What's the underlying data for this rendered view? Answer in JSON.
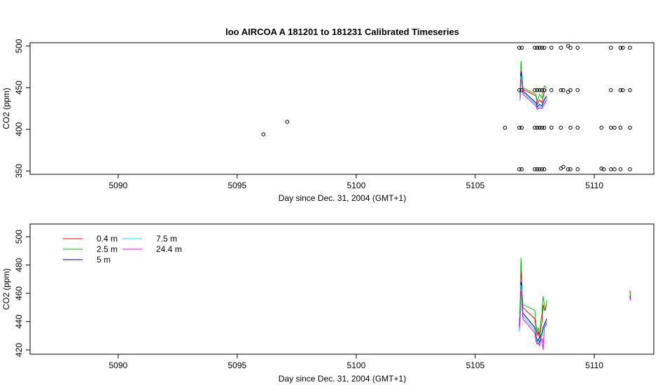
{
  "chart_data": [
    {
      "type": "scatter",
      "title": "loo   AIRCOA  A    181201  to  181231   Calibrated Timeseries",
      "xlabel": "Day since Dec. 31, 2004 (GMT+1)",
      "ylabel": "CO2 (ppm)",
      "xlim": [
        5086.3,
        5112.5
      ],
      "ylim": [
        346,
        504
      ],
      "xticks": [
        "5090",
        "5095",
        "5100",
        "5105",
        "5110"
      ],
      "yticks": [
        "350",
        "400",
        "450",
        "500"
      ],
      "grid": false,
      "colors": {
        "0.4 m": "#ff0000",
        "2.5 m": "#00c000",
        "5 m": "#00008b",
        "7.5 m": "#00e5ee",
        "24.4 m": "#ff00ff"
      },
      "points": [
        [
          5096.1,
          394
        ],
        [
          5097.1,
          409
        ],
        [
          5106.25,
          402
        ],
        [
          5106.85,
          352
        ],
        [
          5106.85,
          402
        ],
        [
          5106.85,
          447
        ],
        [
          5106.85,
          498
        ],
        [
          5106.95,
          352
        ],
        [
          5106.95,
          402
        ],
        [
          5106.95,
          447
        ],
        [
          5106.95,
          498
        ],
        [
          5107.5,
          352
        ],
        [
          5107.5,
          402
        ],
        [
          5107.5,
          447
        ],
        [
          5107.5,
          498
        ],
        [
          5107.6,
          352
        ],
        [
          5107.6,
          402
        ],
        [
          5107.6,
          447
        ],
        [
          5107.6,
          498
        ],
        [
          5107.7,
          352
        ],
        [
          5107.7,
          402
        ],
        [
          5107.7,
          447
        ],
        [
          5107.7,
          498
        ],
        [
          5107.8,
          352
        ],
        [
          5107.8,
          402
        ],
        [
          5107.8,
          447
        ],
        [
          5107.8,
          498
        ],
        [
          5107.9,
          352
        ],
        [
          5107.9,
          402
        ],
        [
          5107.9,
          447
        ],
        [
          5107.9,
          498
        ],
        [
          5108.2,
          402
        ],
        [
          5108.2,
          447
        ],
        [
          5108.2,
          498
        ],
        [
          5108.6,
          353
        ],
        [
          5108.6,
          402
        ],
        [
          5108.6,
          447
        ],
        [
          5108.6,
          498
        ],
        [
          5108.7,
          355
        ],
        [
          5108.7,
          447
        ],
        [
          5108.9,
          352
        ],
        [
          5108.9,
          445
        ],
        [
          5108.9,
          500
        ],
        [
          5109.0,
          352
        ],
        [
          5109.0,
          402
        ],
        [
          5109.0,
          447
        ],
        [
          5109.0,
          498
        ],
        [
          5109.3,
          352
        ],
        [
          5109.3,
          402
        ],
        [
          5109.3,
          447
        ],
        [
          5109.3,
          498
        ],
        [
          5110.3,
          353
        ],
        [
          5110.3,
          402
        ],
        [
          5110.4,
          352
        ],
        [
          5110.7,
          352
        ],
        [
          5110.7,
          402
        ],
        [
          5110.7,
          447
        ],
        [
          5110.7,
          498
        ],
        [
          5110.85,
          352
        ],
        [
          5110.85,
          402
        ],
        [
          5111.1,
          352
        ],
        [
          5111.1,
          402
        ],
        [
          5111.1,
          447
        ],
        [
          5111.1,
          498
        ],
        [
          5111.2,
          447
        ],
        [
          5111.2,
          498
        ],
        [
          5111.5,
          352
        ],
        [
          5111.5,
          402
        ],
        [
          5111.5,
          447
        ],
        [
          5111.5,
          498
        ]
      ],
      "series": [
        {
          "name": "0.4 m",
          "x": [
            5106.88,
            5106.9,
            5106.92,
            5106.95,
            5107.0,
            5107.55,
            5107.6,
            5107.7,
            5107.8,
            5107.9,
            5108.0
          ],
          "y": [
            440,
            456,
            470,
            465,
            448,
            440,
            430,
            435,
            432,
            445,
            448
          ]
        },
        {
          "name": "2.5 m",
          "x": [
            5106.88,
            5106.9,
            5106.92,
            5106.95,
            5107.0,
            5107.55,
            5107.6,
            5107.7,
            5107.8,
            5107.9,
            5108.0
          ],
          "y": [
            445,
            462,
            482,
            470,
            450,
            442,
            433,
            442,
            438,
            452,
            450
          ]
        },
        {
          "name": "5 m",
          "x": [
            5106.88,
            5106.9,
            5106.92,
            5106.95,
            5107.0,
            5107.55,
            5107.6,
            5107.7,
            5107.8,
            5107.9,
            5108.0
          ],
          "y": [
            438,
            452,
            468,
            462,
            446,
            432,
            427,
            430,
            428,
            436,
            440
          ]
        },
        {
          "name": "7.5 m",
          "x": [
            5106.88,
            5106.9,
            5106.92,
            5106.95,
            5107.0,
            5107.55,
            5107.6,
            5107.7,
            5107.8,
            5107.9,
            5108.0
          ],
          "y": [
            434,
            448,
            464,
            460,
            444,
            430,
            425,
            428,
            427,
            432,
            438
          ]
        },
        {
          "name": "24.4 m",
          "x": [
            5106.88,
            5106.9,
            5106.92,
            5106.95,
            5107.0,
            5107.55,
            5107.6,
            5107.7,
            5107.8,
            5107.9,
            5108.0
          ],
          "y": [
            436,
            446,
            460,
            458,
            442,
            428,
            424,
            426,
            425,
            430,
            435
          ]
        }
      ]
    },
    {
      "type": "line",
      "title": "",
      "xlabel": "Day since Dec. 31, 2004 (GMT+1)",
      "ylabel": "CO2 (ppm)",
      "xlim": [
        5086.3,
        5112.5
      ],
      "ylim": [
        417,
        509
      ],
      "xticks": [
        "5090",
        "5095",
        "5100",
        "5105",
        "5110"
      ],
      "yticks": [
        "420",
        "440",
        "460",
        "480",
        "500"
      ],
      "grid": false,
      "legend": {
        "placement": "top-left",
        "entries": [
          "0.4 m",
          "2.5 m",
          "5 m",
          "7.5 m",
          "24.4 m"
        ]
      },
      "series": [
        {
          "name": "0.4 m",
          "color": "#ff0000",
          "x": [
            5106.85,
            5106.88,
            5106.9,
            5106.92,
            5106.95,
            5106.97,
            5107.0,
            5107.5,
            5107.55,
            5107.6,
            5107.65,
            5107.7,
            5107.75,
            5107.8,
            5107.85,
            5107.9,
            5107.95,
            5108.0,
            5111.5,
            5111.52
          ],
          "y": [
            438,
            446,
            460,
            476,
            470,
            456,
            450,
            442,
            436,
            430,
            433,
            428,
            435,
            440,
            452,
            448,
            450,
            452,
            462,
            458
          ]
        },
        {
          "name": "2.5 m",
          "color": "#00c000",
          "x": [
            5106.85,
            5106.88,
            5106.9,
            5106.92,
            5106.95,
            5106.97,
            5107.0,
            5107.5,
            5107.55,
            5107.6,
            5107.65,
            5107.7,
            5107.75,
            5107.8,
            5107.85,
            5107.9,
            5107.95,
            5108.0,
            5111.5,
            5111.52
          ],
          "y": [
            440,
            450,
            466,
            485,
            474,
            460,
            452,
            448,
            438,
            432,
            436,
            430,
            440,
            446,
            458,
            452,
            448,
            455,
            460,
            457
          ]
        },
        {
          "name": "5 m",
          "color": "#00008b",
          "x": [
            5106.85,
            5106.88,
            5106.9,
            5106.92,
            5106.95,
            5106.97,
            5107.0,
            5107.5,
            5107.55,
            5107.6,
            5107.65,
            5107.7,
            5107.75,
            5107.8,
            5107.85,
            5107.9,
            5107.95,
            5108.0,
            5111.5,
            5111.52
          ],
          "y": [
            436,
            444,
            456,
            468,
            466,
            452,
            446,
            436,
            430,
            426,
            428,
            425,
            430,
            432,
            436,
            438,
            440,
            442,
            458,
            456
          ]
        },
        {
          "name": "7.5 m",
          "color": "#00e5ee",
          "x": [
            5106.85,
            5106.88,
            5106.9,
            5106.92,
            5106.95,
            5106.97,
            5107.0,
            5107.5,
            5107.55,
            5107.6,
            5107.65,
            5107.7,
            5107.75,
            5107.8,
            5107.85,
            5107.9,
            5107.95,
            5108.0,
            5111.5,
            5111.52
          ],
          "y": [
            433,
            442,
            452,
            466,
            462,
            450,
            444,
            434,
            428,
            425,
            427,
            424,
            428,
            430,
            434,
            437,
            438,
            440,
            456,
            455
          ]
        },
        {
          "name": "24.4 m",
          "color": "#ff00ff",
          "x": [
            5106.85,
            5106.88,
            5106.9,
            5106.92,
            5106.95,
            5106.97,
            5107.0,
            5107.5,
            5107.55,
            5107.6,
            5107.65,
            5107.7,
            5107.75,
            5107.8,
            5107.85,
            5107.9,
            5107.95,
            5108.0,
            5111.5,
            5111.52
          ],
          "y": [
            435,
            440,
            450,
            462,
            458,
            448,
            442,
            432,
            426,
            424,
            425,
            423,
            427,
            428,
            420,
            436,
            437,
            439,
            457,
            455
          ]
        }
      ]
    }
  ]
}
